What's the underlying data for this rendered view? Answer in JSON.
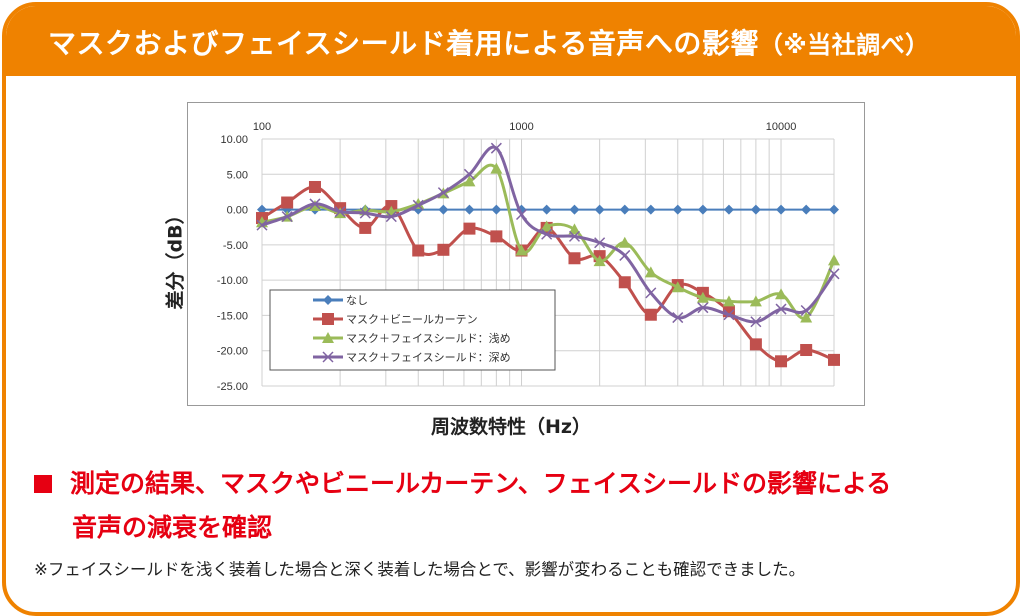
{
  "header": {
    "title": "マスクおよびフェイスシールド着用による音声への影響",
    "note": "（※当社調べ）"
  },
  "summary": {
    "line1": "測定の結果、マスクやビニールカーテン、フェイスシールドの影響による",
    "line2": "音声の減衰を確認"
  },
  "footnote": "※フェイスシールドを浅く装着した場合と深く装着した場合とで、影響が変わることも確認できました。",
  "colors": {
    "accent": "#ef8200",
    "highlight": "#e60012"
  },
  "chart_data": {
    "type": "line",
    "xlabel": "周波数特性（Hz）",
    "ylabel": "差分（dB）",
    "xscale": "log",
    "xlim": [
      100,
      16000
    ],
    "ylim": [
      -25,
      10
    ],
    "grid": true,
    "legend_position": "bottom-left",
    "x_ticks": [
      "100",
      "1000",
      "10000"
    ],
    "y_ticks": [
      "10.00",
      "5.00",
      "0.00",
      "-5.00",
      "-10.00",
      "-15.00",
      "-20.00",
      "-25.00"
    ],
    "x": [
      100,
      125,
      160,
      200,
      250,
      315,
      400,
      500,
      630,
      800,
      1000,
      1250,
      1600,
      2000,
      2500,
      3150,
      4000,
      5000,
      6300,
      8000,
      10000,
      12500,
      16000
    ],
    "series": [
      {
        "name": "なし",
        "color": "#4a7ebb",
        "marker": "diamond",
        "values": [
          0,
          0,
          0,
          0,
          0,
          0,
          0,
          0,
          0,
          0,
          0,
          0,
          0,
          0,
          0,
          0,
          0,
          0,
          0,
          0,
          0,
          0,
          0
        ]
      },
      {
        "name": "マスク＋ビニールカーテン",
        "color": "#c0504d",
        "marker": "square",
        "values": [
          -1.2,
          1.0,
          3.2,
          0.2,
          -2.6,
          0.5,
          -5.8,
          -5.7,
          -2.7,
          -3.8,
          -5.8,
          -2.6,
          -6.9,
          -6.6,
          -10.3,
          -14.9,
          -10.7,
          -11.8,
          -14.4,
          -19.1,
          -21.5,
          -19.9,
          -21.3
        ]
      },
      {
        "name": "マスク＋フェイスシールド：浅め",
        "color": "#9bbb59",
        "marker": "triangle",
        "values": [
          -1.8,
          -1.0,
          0.5,
          -0.5,
          -0.1,
          -0.3,
          0.8,
          2.3,
          4.0,
          5.8,
          -5.8,
          -2.4,
          -2.8,
          -7.3,
          -4.7,
          -8.9,
          -11.0,
          -12.5,
          -13.0,
          -13.0,
          -12.0,
          -15.3,
          -7.2
        ]
      },
      {
        "name": "マスク＋フェイスシールド：深め",
        "color": "#8064a2",
        "marker": "x",
        "values": [
          -2.2,
          -1.0,
          0.8,
          -0.3,
          -0.5,
          -1.0,
          0.6,
          2.4,
          5.0,
          8.7,
          -0.7,
          -3.5,
          -3.8,
          -4.7,
          -6.5,
          -11.8,
          -15.3,
          -13.9,
          -14.9,
          -15.9,
          -14.1,
          -14.3,
          -9.1
        ]
      }
    ]
  }
}
